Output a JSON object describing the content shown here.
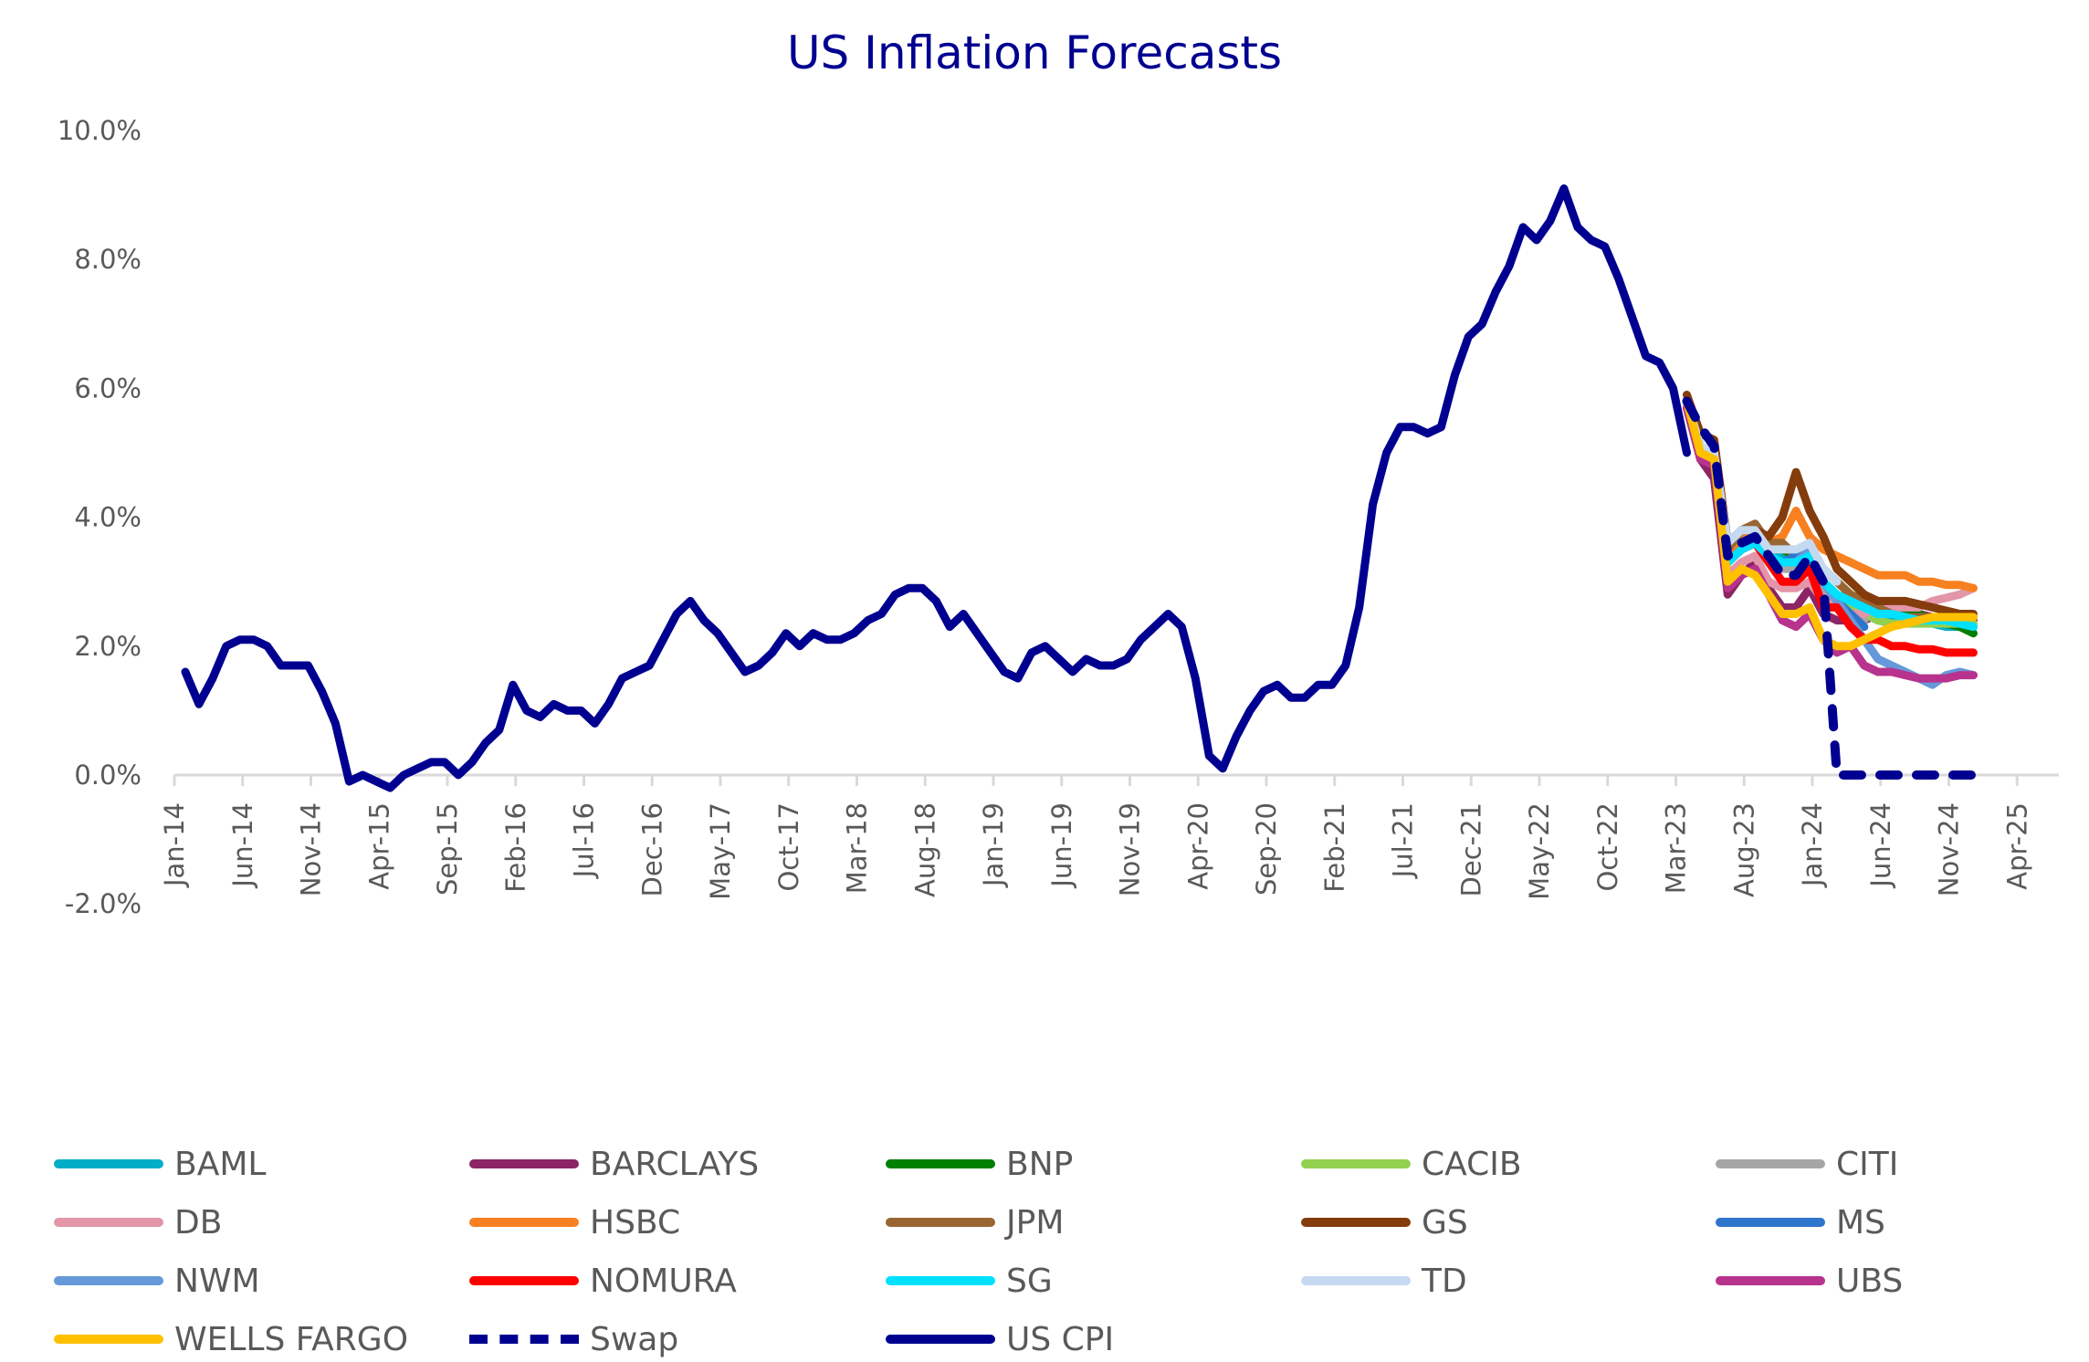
{
  "chart_data": {
    "type": "line",
    "title": "US Inflation Forecasts",
    "xlabel": "",
    "ylabel": "",
    "ylim": [
      -0.02,
      0.1
    ],
    "yticks": [
      -0.02,
      0.0,
      0.02,
      0.04,
      0.06,
      0.08,
      0.1
    ],
    "ytick_labels": [
      "-2.0%",
      "0.0%",
      "2.0%",
      "4.0%",
      "6.0%",
      "8.0%",
      "10.0%"
    ],
    "x_start": "Jan-14",
    "x_range_months": [
      0,
      136
    ],
    "xtick_labels": [
      "Jan-14",
      "Jun-14",
      "Nov-14",
      "Apr-15",
      "Sep-15",
      "Feb-16",
      "Jul-16",
      "Dec-16",
      "May-17",
      "Oct-17",
      "Mar-18",
      "Aug-18",
      "Jan-19",
      "Jun-19",
      "Nov-19",
      "Apr-20",
      "Sep-20",
      "Feb-21",
      "Jul-21",
      "Dec-21",
      "May-22",
      "Oct-22",
      "Mar-23",
      "Aug-23",
      "Jan-24",
      "Jun-24",
      "Nov-24",
      "Apr-25"
    ],
    "xtick_interval_months": 5,
    "grid": false,
    "legend_position": "bottom",
    "series": [
      {
        "name": "BAML",
        "color": "#00AEC7",
        "style": "solid",
        "start_month": 110,
        "values": [
          5.8,
          5.0,
          4.8,
          3.3,
          3.5,
          3.7,
          3.4,
          3.4,
          3.3,
          3.4,
          3.0,
          2.8,
          2.6,
          2.5,
          2.4,
          2.4,
          2.4,
          2.4,
          2.35,
          2.3,
          2.3,
          2.3
        ]
      },
      {
        "name": "BARCLAYS",
        "color": "#8B2566",
        "style": "solid",
        "start_month": 110,
        "values": [
          5.7,
          4.9,
          4.6,
          2.8,
          3.1,
          3.3,
          2.9,
          2.6,
          2.6,
          2.9,
          2.5,
          2.4,
          2.4,
          2.4,
          2.5,
          2.5,
          2.5,
          2.5,
          2.45,
          2.45,
          2.4,
          2.4
        ]
      },
      {
        "name": "BNP",
        "color": "#008000",
        "style": "solid",
        "start_month": 110,
        "values": [
          5.8,
          5.1,
          4.9,
          3.4,
          3.7,
          3.8,
          3.5,
          3.5,
          3.4,
          3.5,
          3.2,
          3.0,
          2.8,
          2.7,
          2.6,
          2.5,
          2.5,
          2.5,
          2.4,
          2.35,
          2.3,
          2.2
        ]
      },
      {
        "name": "CACIB",
        "color": "#92D050",
        "style": "solid",
        "start_month": 110,
        "values": [
          5.8,
          5.0,
          4.8,
          3.3,
          3.6,
          3.7,
          3.4,
          3.3,
          3.3,
          3.4,
          3.0,
          2.8,
          2.6,
          2.5,
          2.4,
          2.35,
          2.35,
          2.35,
          2.35,
          2.35,
          2.35,
          2.35
        ]
      },
      {
        "name": "CITI",
        "color": "#A6A6A6",
        "style": "solid",
        "start_month": 110,
        "values": [
          5.8,
          5.0,
          4.8,
          3.3,
          3.5,
          3.6,
          3.3,
          3.2,
          3.2,
          3.3,
          2.8,
          2.6,
          2.5,
          2.4
        ]
      },
      {
        "name": "DB",
        "color": "#E396A8",
        "style": "solid",
        "start_month": 110,
        "values": [
          5.8,
          5.0,
          4.8,
          3.1,
          3.3,
          3.4,
          3.0,
          2.9,
          2.9,
          3.0,
          2.7,
          2.6,
          2.5,
          2.5,
          2.6,
          2.6,
          2.6,
          2.6,
          2.7,
          2.75,
          2.8,
          2.9
        ]
      },
      {
        "name": "HSBC",
        "color": "#F78020",
        "style": "solid",
        "start_month": 110,
        "values": [
          5.8,
          5.1,
          5.0,
          3.4,
          3.7,
          3.8,
          3.6,
          3.7,
          4.1,
          3.7,
          3.5,
          3.4,
          3.3,
          3.2,
          3.1,
          3.1,
          3.1,
          3.0,
          3.0,
          2.95,
          2.95,
          2.9
        ]
      },
      {
        "name": "JPM",
        "color": "#996633",
        "style": "solid",
        "start_month": 110,
        "values": [
          5.8,
          5.1,
          5.0,
          3.5,
          3.8,
          3.9,
          3.6,
          3.6,
          3.4,
          3.5,
          3.2,
          3.0,
          2.8,
          2.7,
          2.6,
          2.5,
          2.45,
          2.45,
          2.45,
          2.45,
          2.45,
          2.45
        ]
      },
      {
        "name": "GS",
        "color": "#843C0C",
        "style": "solid",
        "start_month": 110,
        "values": [
          5.9,
          5.3,
          5.2,
          3.6,
          3.8,
          3.8,
          3.7,
          4.0,
          4.7,
          4.1,
          3.7,
          3.2,
          3.0,
          2.8,
          2.7,
          2.7,
          2.7,
          2.65,
          2.6,
          2.55,
          2.5,
          2.5
        ]
      },
      {
        "name": "MS",
        "color": "#2E75CC",
        "style": "solid",
        "start_month": 110,
        "values": [
          5.8,
          5.0,
          4.8,
          3.3,
          3.5,
          3.6,
          3.4,
          3.3,
          3.4,
          3.4,
          3.0,
          2.7,
          2.5,
          2.3
        ]
      },
      {
        "name": "NWM",
        "color": "#6699D9",
        "style": "solid",
        "start_month": 110,
        "values": [
          5.8,
          5.0,
          4.8,
          3.3,
          3.5,
          3.6,
          3.3,
          3.3,
          3.3,
          3.5,
          3.0,
          2.7,
          2.4,
          2.1,
          1.8,
          1.7,
          1.6,
          1.5,
          1.4,
          1.55,
          1.6,
          1.55
        ]
      },
      {
        "name": "NOMURA",
        "color": "#FF0000",
        "style": "solid",
        "start_month": 110,
        "values": [
          5.8,
          5.0,
          4.8,
          3.3,
          3.5,
          3.6,
          3.3,
          3.0,
          3.0,
          3.2,
          2.6,
          2.6,
          2.3,
          2.1,
          2.1,
          2.0,
          2.0,
          1.95,
          1.95,
          1.9,
          1.9,
          1.9
        ]
      },
      {
        "name": "SG",
        "color": "#00E0FF",
        "style": "solid",
        "start_month": 110,
        "values": [
          5.8,
          5.0,
          4.8,
          3.3,
          3.5,
          3.6,
          3.4,
          3.3,
          3.3,
          3.4,
          3.0,
          2.8,
          2.7,
          2.6,
          2.5,
          2.5,
          2.45,
          2.4,
          2.4,
          2.4,
          2.35,
          2.3
        ]
      },
      {
        "name": "TD",
        "color": "#C5D9F1",
        "style": "solid",
        "start_month": 110,
        "values": [
          5.8,
          5.1,
          5.0,
          3.6,
          3.8,
          3.8,
          3.5,
          3.5,
          3.5,
          3.6,
          3.2,
          3.0
        ]
      },
      {
        "name": "UBS",
        "color": "#B8338E",
        "style": "solid",
        "start_month": 110,
        "values": [
          5.7,
          4.9,
          4.8,
          2.9,
          3.1,
          3.2,
          2.8,
          2.4,
          2.3,
          2.5,
          2.1,
          1.9,
          2.0,
          1.7,
          1.6,
          1.6,
          1.55,
          1.5,
          1.5,
          1.5,
          1.55,
          1.55
        ]
      },
      {
        "name": "WELLS FARGO",
        "color": "#FFC000",
        "style": "solid",
        "start_month": 110,
        "values": [
          5.8,
          5.0,
          4.9,
          3.0,
          3.2,
          3.1,
          2.8,
          2.5,
          2.5,
          2.6,
          2.1,
          2.0,
          2.0,
          2.1,
          2.2,
          2.3,
          2.35,
          2.4,
          2.45,
          2.45,
          2.45,
          2.45
        ]
      },
      {
        "name": "Swap",
        "color": "#000090",
        "style": "dashed",
        "start_month": 110,
        "values": [
          5.8,
          5.4,
          5.1,
          3.4,
          3.6,
          3.7,
          3.4,
          3.1,
          3.1,
          3.4,
          3.0,
          0.0,
          0.0,
          0.0,
          0.0,
          0.0,
          0.0,
          0.0,
          0.0,
          0.0,
          0.0,
          0.0,
          0.0
        ]
      },
      {
        "name": "US CPI",
        "color": "#000090",
        "style": "solid",
        "start_month": 0,
        "values": [
          1.6,
          1.1,
          1.5,
          2.0,
          2.1,
          2.1,
          2.0,
          1.7,
          1.7,
          1.7,
          1.3,
          0.8,
          -0.1,
          0.0,
          -0.1,
          -0.2,
          0.0,
          0.1,
          0.2,
          0.2,
          0.0,
          0.2,
          0.5,
          0.7,
          1.4,
          1.0,
          0.9,
          1.1,
          1.0,
          1.0,
          0.8,
          1.1,
          1.5,
          1.6,
          1.7,
          2.1,
          2.5,
          2.7,
          2.4,
          2.2,
          1.9,
          1.6,
          1.7,
          1.9,
          2.2,
          2.0,
          2.2,
          2.1,
          2.1,
          2.2,
          2.4,
          2.5,
          2.8,
          2.9,
          2.9,
          2.7,
          2.3,
          2.5,
          2.2,
          1.9,
          1.6,
          1.5,
          1.9,
          2.0,
          1.8,
          1.6,
          1.8,
          1.7,
          1.7,
          1.8,
          2.1,
          2.3,
          2.5,
          2.3,
          1.5,
          0.3,
          0.1,
          0.6,
          1.0,
          1.3,
          1.4,
          1.2,
          1.2,
          1.4,
          1.4,
          1.7,
          2.6,
          4.2,
          5.0,
          5.4,
          5.4,
          5.3,
          5.4,
          6.2,
          6.8,
          7.0,
          7.5,
          7.9,
          8.5,
          8.3,
          8.6,
          9.1,
          8.5,
          8.3,
          8.2,
          7.7,
          7.1,
          6.5,
          6.4,
          6.0,
          5.0
        ]
      }
    ]
  }
}
